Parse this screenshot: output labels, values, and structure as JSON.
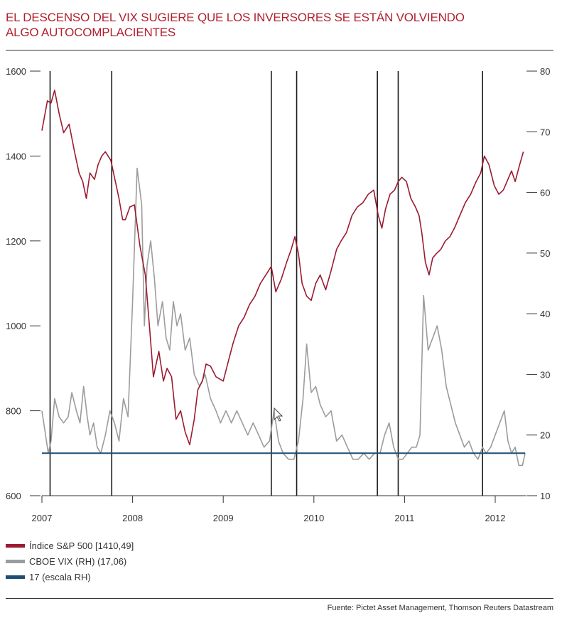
{
  "title_line1": "EL DESCENSO DEL VIX SUGIERE QUE LOS INVERSORES SE ESTÁN VOLVIENDO",
  "title_line2": "ALGO AUTOCOMPLACIENTES",
  "source": "Fuente: Pictet Asset Management, Thomson Reuters Datastream",
  "colors": {
    "sp500": "#9b1b30",
    "vix": "#9c9c9c",
    "line17": "#1d4f73",
    "title": "#b21f2d"
  },
  "chart_data": {
    "type": "line",
    "x_range": [
      2007.0,
      2012.35
    ],
    "x_tick_labels": [
      "2007",
      "2008",
      "2009",
      "2010",
      "2011",
      "2012"
    ],
    "x_ticks": [
      2007,
      2008,
      2009,
      2010,
      2011,
      2012
    ],
    "left_axis": {
      "range": [
        600,
        1600
      ],
      "ticks": [
        600,
        800,
        1000,
        1200,
        1400,
        1600
      ]
    },
    "right_axis": {
      "range": [
        10,
        80
      ],
      "ticks": [
        10,
        20,
        30,
        40,
        50,
        60,
        70,
        80
      ]
    },
    "vertical_lines": [
      2007.09,
      2007.77,
      2009.53,
      2009.81,
      2010.7,
      2010.93,
      2011.86
    ],
    "legend": [
      {
        "label": "Índice S&P 500  [1410,49]",
        "color": "#9b1b30"
      },
      {
        "label": "CBOE VIX (RH) (17,06)",
        "color": "#9c9c9c"
      },
      {
        "label": "17 (escala RH)",
        "color": "#1d4f73"
      }
    ],
    "series": [
      {
        "name": "Índice S&P 500  [1410,49]",
        "axis": "left",
        "x": [
          2007.0,
          2007.06,
          2007.1,
          2007.14,
          2007.19,
          2007.24,
          2007.3,
          2007.36,
          2007.41,
          2007.45,
          2007.49,
          2007.53,
          2007.58,
          2007.62,
          2007.66,
          2007.7,
          2007.76,
          2007.8,
          2007.85,
          2007.89,
          2007.92,
          2007.97,
          2008.02,
          2008.08,
          2008.14,
          2008.19,
          2008.23,
          2008.29,
          2008.34,
          2008.38,
          2008.43,
          2008.48,
          2008.53,
          2008.58,
          2008.63,
          2008.68,
          2008.72,
          2008.77,
          2008.81,
          2008.86,
          2008.92,
          2009.0,
          2009.06,
          2009.11,
          2009.17,
          2009.23,
          2009.29,
          2009.35,
          2009.41,
          2009.47,
          2009.53,
          2009.58,
          2009.64,
          2009.7,
          2009.75,
          2009.79,
          2009.83,
          2009.87,
          2009.92,
          2009.97,
          2010.02,
          2010.07,
          2010.13,
          2010.19,
          2010.25,
          2010.3,
          2010.36,
          2010.42,
          2010.48,
          2010.54,
          2010.6,
          2010.66,
          2010.71,
          2010.75,
          2010.79,
          2010.84,
          2010.89,
          2010.93,
          2010.97,
          2011.02,
          2011.07,
          2011.12,
          2011.16,
          2011.19,
          2011.23,
          2011.27,
          2011.31,
          2011.35,
          2011.4,
          2011.45,
          2011.5,
          2011.55,
          2011.61,
          2011.67,
          2011.73,
          2011.79,
          2011.84,
          2011.88,
          2011.93,
          2011.99,
          2012.04,
          2012.09,
          2012.13,
          2012.18,
          2012.22,
          2012.27,
          2012.31
        ],
        "values": [
          1460,
          1530,
          1525,
          1555,
          1500,
          1455,
          1475,
          1410,
          1360,
          1340,
          1300,
          1360,
          1345,
          1380,
          1400,
          1410,
          1390,
          1350,
          1300,
          1250,
          1250,
          1280,
          1285,
          1190,
          1120,
          990,
          880,
          940,
          870,
          900,
          880,
          780,
          800,
          750,
          720,
          780,
          850,
          870,
          910,
          905,
          880,
          870,
          920,
          960,
          1000,
          1020,
          1050,
          1070,
          1100,
          1120,
          1140,
          1080,
          1110,
          1150,
          1180,
          1210,
          1170,
          1100,
          1070,
          1060,
          1100,
          1120,
          1085,
          1130,
          1180,
          1200,
          1220,
          1260,
          1280,
          1290,
          1310,
          1320,
          1260,
          1230,
          1275,
          1310,
          1320,
          1340,
          1350,
          1340,
          1300,
          1280,
          1260,
          1220,
          1150,
          1120,
          1160,
          1170,
          1180,
          1200,
          1210,
          1230,
          1260,
          1290,
          1310,
          1340,
          1360,
          1400,
          1380,
          1330,
          1310,
          1320,
          1340,
          1365,
          1340,
          1380,
          1410
        ]
      },
      {
        "name": "CBOE VIX (RH) (17,06)",
        "axis": "right",
        "x": [
          2007.0,
          2007.04,
          2007.07,
          2007.1,
          2007.14,
          2007.19,
          2007.24,
          2007.29,
          2007.33,
          2007.38,
          2007.42,
          2007.46,
          2007.5,
          2007.53,
          2007.57,
          2007.61,
          2007.65,
          2007.7,
          2007.75,
          2007.8,
          2007.85,
          2007.9,
          2007.95,
          2008.0,
          2008.05,
          2008.1,
          2008.13,
          2008.16,
          2008.2,
          2008.24,
          2008.28,
          2008.33,
          2008.37,
          2008.41,
          2008.45,
          2008.49,
          2008.53,
          2008.58,
          2008.63,
          2008.68,
          2008.74,
          2008.8,
          2008.86,
          2008.92,
          2008.97,
          2009.03,
          2009.09,
          2009.15,
          2009.21,
          2009.27,
          2009.33,
          2009.39,
          2009.45,
          2009.51,
          2009.56,
          2009.61,
          2009.66,
          2009.72,
          2009.78,
          2009.83,
          2009.88,
          2009.92,
          2009.97,
          2010.02,
          2010.07,
          2010.13,
          2010.19,
          2010.25,
          2010.31,
          2010.37,
          2010.43,
          2010.49,
          2010.55,
          2010.61,
          2010.67,
          2010.73,
          2010.78,
          2010.83,
          2010.88,
          2010.93,
          2010.98,
          2011.03,
          2011.08,
          2011.13,
          2011.17,
          2011.21,
          2011.26,
          2011.31,
          2011.36,
          2011.41,
          2011.46,
          2011.51,
          2011.56,
          2011.61,
          2011.66,
          2011.71,
          2011.76,
          2011.81,
          2011.86,
          2011.9,
          2011.95,
          2012.0,
          2012.05,
          2012.1,
          2012.14,
          2012.18,
          2012.22,
          2012.26,
          2012.3,
          2012.33
        ],
        "values": [
          24,
          20,
          17,
          19,
          26,
          23,
          22,
          23,
          27,
          24,
          22,
          28,
          23,
          20,
          22,
          18,
          17,
          20,
          24,
          22,
          19,
          26,
          23,
          42,
          64,
          58,
          38,
          48,
          52,
          46,
          38,
          42,
          36,
          34,
          42,
          38,
          40,
          34,
          36,
          30,
          28,
          30,
          26,
          24,
          22,
          24,
          22,
          24,
          22,
          20,
          22,
          20,
          18,
          19,
          24,
          19,
          17,
          16,
          16,
          19,
          26,
          35,
          27,
          28,
          25,
          23,
          24,
          19,
          20,
          18,
          16,
          16,
          17,
          16,
          17,
          17,
          20,
          22,
          18,
          16,
          16,
          17,
          18,
          18,
          20,
          43,
          34,
          36,
          38,
          34,
          28,
          25,
          22,
          20,
          18,
          19,
          17,
          16,
          18,
          17,
          18,
          20,
          22,
          24,
          19,
          17,
          18,
          15,
          15,
          17
        ]
      },
      {
        "name": "17 (escala RH)",
        "axis": "right",
        "x": [
          2007.0,
          2012.33
        ],
        "values": [
          17,
          17
        ]
      }
    ]
  }
}
